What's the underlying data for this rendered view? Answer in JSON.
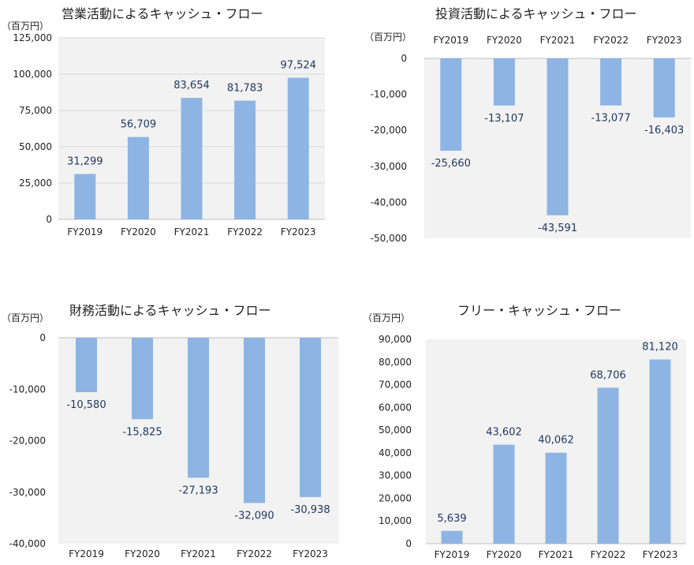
{
  "unit_label": "（百万円）",
  "chart_data": [
    {
      "type": "bar",
      "title": "営業活動によるキャッシュ・フロー",
      "categories": [
        "FY2019",
        "FY2020",
        "FY2021",
        "FY2022",
        "FY2023"
      ],
      "values": [
        31299,
        56709,
        83654,
        81783,
        97524
      ],
      "value_labels": [
        "31,299",
        "56,709",
        "83,654",
        "81,783",
        "97,524"
      ],
      "ylim": [
        0,
        125000
      ],
      "yticks": [
        0,
        25000,
        50000,
        75000,
        100000,
        125000
      ],
      "ytick_labels": [
        "0",
        "25,000",
        "50,000",
        "75,000",
        "100,000",
        "125,000"
      ],
      "grid": true,
      "category_axis": "bottom"
    },
    {
      "type": "bar",
      "title": "投資活動によるキャッシュ・フロー",
      "categories": [
        "FY2019",
        "FY2020",
        "FY2021",
        "FY2022",
        "FY2023"
      ],
      "values": [
        -25660,
        -13107,
        -43591,
        -13077,
        -16403
      ],
      "value_labels": [
        "-25,660",
        "-13,107",
        "-43,591",
        "-13,077",
        "-16,403"
      ],
      "ylim": [
        -50000,
        0
      ],
      "yticks": [
        0,
        -10000,
        -20000,
        -30000,
        -40000,
        -50000
      ],
      "ytick_labels": [
        "0",
        "-10,000",
        "-20,000",
        "-30,000",
        "-40,000",
        "-50,000"
      ],
      "grid": false,
      "category_axis": "top"
    },
    {
      "type": "bar",
      "title": "財務活動によるキャッシュ・フロー",
      "categories": [
        "FY2019",
        "FY2020",
        "FY2021",
        "FY2022",
        "FY2023"
      ],
      "values": [
        -10580,
        -15825,
        -27193,
        -32090,
        -30938
      ],
      "value_labels": [
        "-10,580",
        "-15,825",
        "-27,193",
        "-32,090",
        "-30,938"
      ],
      "ylim": [
        -40000,
        0
      ],
      "yticks": [
        0,
        -10000,
        -20000,
        -30000,
        -40000
      ],
      "ytick_labels": [
        "0",
        "-10,000",
        "-20,000",
        "-30,000",
        "-40,000"
      ],
      "grid": false,
      "category_axis": "bottom"
    },
    {
      "type": "bar",
      "title": "フリー・キャッシュ・フロー",
      "categories": [
        "FY2019",
        "FY2020",
        "FY2021",
        "FY2022",
        "FY2023"
      ],
      "values": [
        5639,
        43602,
        40062,
        68706,
        81120
      ],
      "value_labels": [
        "5,639",
        "43,602",
        "40,062",
        "68,706",
        "81,120"
      ],
      "ylim": [
        0,
        90000
      ],
      "yticks": [
        0,
        10000,
        20000,
        30000,
        40000,
        50000,
        60000,
        70000,
        80000,
        90000
      ],
      "ytick_labels": [
        "0",
        "10,000",
        "20,000",
        "30,000",
        "40,000",
        "50,000",
        "60,000",
        "70,000",
        "80,000",
        "90,000"
      ],
      "grid": false,
      "category_axis": "bottom"
    }
  ],
  "colors": {
    "bar": "#8eb4e3",
    "plot_bg": "#f2f2f2",
    "value_label": "#1f3864",
    "axis_line": "#bfbfbf",
    "text": "#222222"
  }
}
